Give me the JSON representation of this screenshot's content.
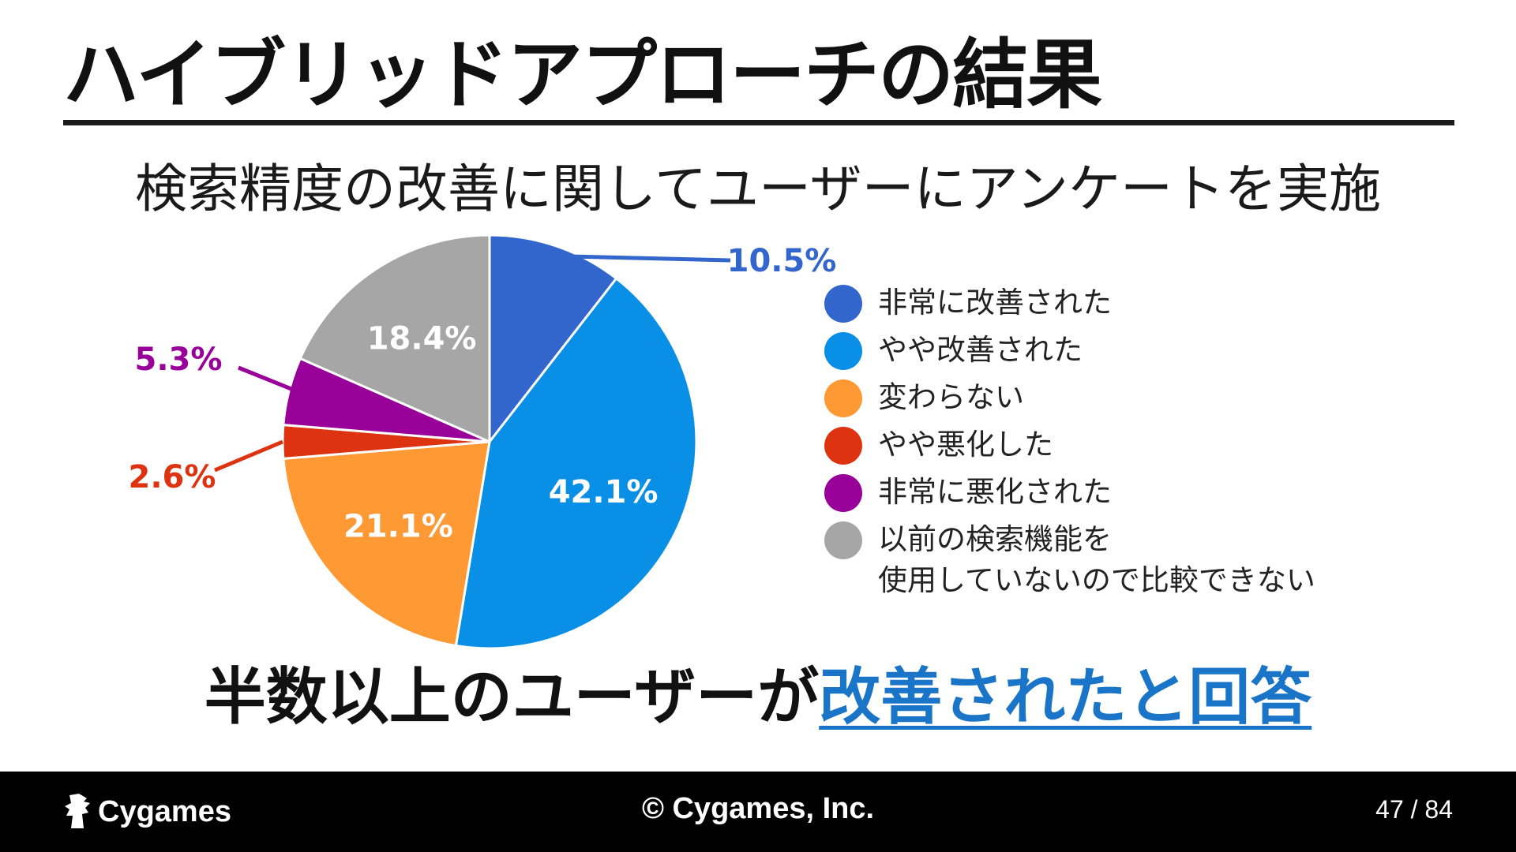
{
  "slide": {
    "title": "ハイブリッドアプローチの結果",
    "subtitle": "検索精度の改善に関してユーザーにアンケートを実施",
    "conclusion_prefix": "半数以上のユーザーが",
    "conclusion_highlight": "改善されたと回答"
  },
  "chart_data": {
    "type": "pie",
    "start_angle_deg": 0,
    "direction": "clockwise",
    "slices": [
      {
        "label": "非常に改善された",
        "value": 10.5,
        "display": "10.5%",
        "color": "#3366cc",
        "label_color": "#3366cc",
        "label_placement": "outside"
      },
      {
        "label": "やや改善された",
        "value": 42.1,
        "display": "42.1%",
        "color": "#0a8fe6",
        "label_color": "#ffffff",
        "label_placement": "inside"
      },
      {
        "label": "変わらない",
        "value": 21.1,
        "display": "21.1%",
        "color": "#ff9933",
        "label_color": "#ffffff",
        "label_placement": "inside"
      },
      {
        "label": "やや悪化した",
        "value": 2.6,
        "display": "2.6%",
        "color": "#dd3311",
        "label_color": "#dd3311",
        "label_placement": "outside"
      },
      {
        "label": "非常に悪化された",
        "value": 5.3,
        "display": "5.3%",
        "color": "#990099",
        "label_color": "#990099",
        "label_placement": "outside"
      },
      {
        "label": "以前の検索機能を\n使用していないので比較できない",
        "value": 18.4,
        "display": "18.4%",
        "color": "#a6a6a6",
        "label_color": "#ffffff",
        "label_placement": "inside"
      }
    ],
    "legend_position": "right"
  },
  "legend": {
    "items": [
      {
        "text": "非常に改善された",
        "color": "#3366cc"
      },
      {
        "text": "やや改善された",
        "color": "#0a8fe6"
      },
      {
        "text": "変わらない",
        "color": "#ff9933"
      },
      {
        "text": "やや悪化した",
        "color": "#dd3311"
      },
      {
        "text": "非常に悪化された",
        "color": "#990099"
      },
      {
        "text_line1": "以前の検索機能を",
        "text_line2": "使用していないので比較できない",
        "color": "#a6a6a6"
      }
    ]
  },
  "footer": {
    "logo_text": "Cygames",
    "copyright": "© Cygames, Inc.",
    "page_number": "47",
    "page_total": "84"
  }
}
